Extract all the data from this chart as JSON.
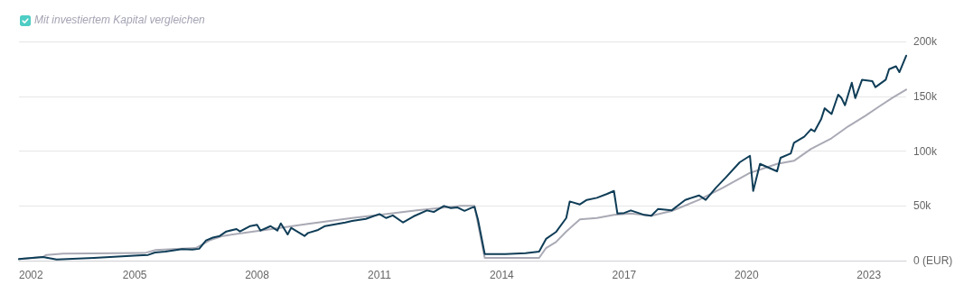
{
  "chart_data": {
    "type": "line",
    "annotations": [
      "Mit investiertem Kapital vergleichen"
    ],
    "xlim": [
      "2002-03",
      "2023-12"
    ],
    "xticks": [
      {
        "value": "2002-03",
        "label": "2002"
      },
      "2005",
      "2008",
      "2011",
      "2014",
      "2017",
      "2020",
      "2023"
    ],
    "ylim": [
      0,
      200000
    ],
    "yticks": [
      {
        "value": 0,
        "label": "0 (EUR)"
      },
      {
        "value": 50000,
        "label": "50k"
      },
      {
        "value": 100000,
        "label": "100k"
      },
      {
        "value": 150000,
        "label": "150k"
      },
      {
        "value": 200000,
        "label": "200k"
      }
    ],
    "grid": "y",
    "marker": "none",
    "line_style": "solid",
    "series": [
      {
        "color": "#a9aab5",
        "x": [
          "2002-03",
          "2002-10",
          "2002-11",
          "2003-04",
          "2005-04",
          "2005-07",
          "2006-07",
          "2006-11",
          "2007-03",
          "2007-12",
          "2008-10",
          "2009-04",
          "2010-05",
          "2011-01",
          "2011-12",
          "2013-01",
          "2013-05",
          "2013-08",
          "2014-12",
          "2015-02",
          "2015-05",
          "2015-08",
          "2015-12",
          "2016-05",
          "2016-10",
          "2017-03",
          "2017-09",
          "2018-03",
          "2018-11",
          "2019-06",
          "2020-02",
          "2020-10",
          "2021-03",
          "2021-08",
          "2022-02",
          "2022-07",
          "2022-12",
          "2023-04",
          "2023-08",
          "2023-12"
        ],
        "values": [
          1400,
          3300,
          5200,
          6300,
          6900,
          9600,
          11500,
          18400,
          22500,
          26600,
          30800,
          33500,
          38900,
          41700,
          45800,
          50000,
          50000,
          2500,
          2500,
          11500,
          17000,
          26600,
          37600,
          38900,
          41700,
          43000,
          40900,
          45300,
          55400,
          66400,
          80100,
          88300,
          91100,
          102000,
          111700,
          122600,
          132200,
          140500,
          148700,
          156100
        ]
      },
      {
        "color": "#0f3d57",
        "x": [
          "2002-03",
          "2002-10",
          "2003-02",
          "2004-01",
          "2005-02",
          "2005-05",
          "2005-07",
          "2005-10",
          "2006-03",
          "2006-06",
          "2006-08",
          "2006-10",
          "2006-12",
          "2007-02",
          "2007-04",
          "2007-07",
          "2007-08",
          "2007-11",
          "2008-01",
          "2008-02",
          "2008-05",
          "2008-07",
          "2008-08",
          "2008-10",
          "2008-11",
          "2009-03",
          "2009-04",
          "2009-07",
          "2009-09",
          "2010-03",
          "2010-05",
          "2010-09",
          "2011-01",
          "2011-03",
          "2011-05",
          "2011-08",
          "2011-11",
          "2012-03",
          "2012-05",
          "2012-08",
          "2012-10",
          "2012-12",
          "2013-02",
          "2013-04",
          "2013-05",
          "2013-06",
          "2013-08",
          "2014-02",
          "2014-08",
          "2014-12",
          "2015-02",
          "2015-05",
          "2015-08",
          "2015-09",
          "2015-12",
          "2016-02",
          "2016-05",
          "2016-08",
          "2016-10",
          "2016-11",
          "2017-01",
          "2017-03",
          "2017-07",
          "2017-09",
          "2017-11",
          "2018-03",
          "2018-07",
          "2018-11",
          "2019-01",
          "2019-04",
          "2019-07",
          "2019-11",
          "2020-02",
          "2020-03",
          "2020-05",
          "2020-10",
          "2020-11",
          "2021-02",
          "2021-03",
          "2021-06",
          "2021-08",
          "2021-09",
          "2021-11",
          "2021-12",
          "2022-02",
          "2022-04",
          "2022-05",
          "2022-06",
          "2022-08",
          "2022-09",
          "2022-11",
          "2023-02",
          "2023-03",
          "2023-06",
          "2023-07",
          "2023-09",
          "2023-10",
          "2023-12"
        ],
        "values": [
          1400,
          3300,
          1000,
          2500,
          4700,
          5200,
          7400,
          8200,
          10400,
          10000,
          10800,
          18400,
          21000,
          22500,
          26600,
          28800,
          26600,
          31500,
          32700,
          27400,
          31500,
          27400,
          34000,
          23900,
          29900,
          22500,
          25200,
          28000,
          31500,
          34800,
          36200,
          38100,
          42500,
          38900,
          41300,
          34800,
          40300,
          45800,
          44400,
          49900,
          48000,
          48500,
          45400,
          48000,
          49100,
          37600,
          6000,
          6000,
          6800,
          8200,
          19800,
          26100,
          38900,
          54000,
          51300,
          55400,
          57300,
          60900,
          63600,
          43000,
          43500,
          45800,
          41700,
          40900,
          47200,
          45800,
          55400,
          59500,
          55400,
          66400,
          76000,
          89700,
          95700,
          63600,
          88300,
          81500,
          93800,
          97900,
          107500,
          113000,
          119900,
          117900,
          129500,
          139000,
          133800,
          151400,
          148300,
          141800,
          162400,
          148300,
          165100,
          163800,
          158300,
          165100,
          174700,
          177400,
          172000,
          187000
        ]
      }
    ]
  }
}
